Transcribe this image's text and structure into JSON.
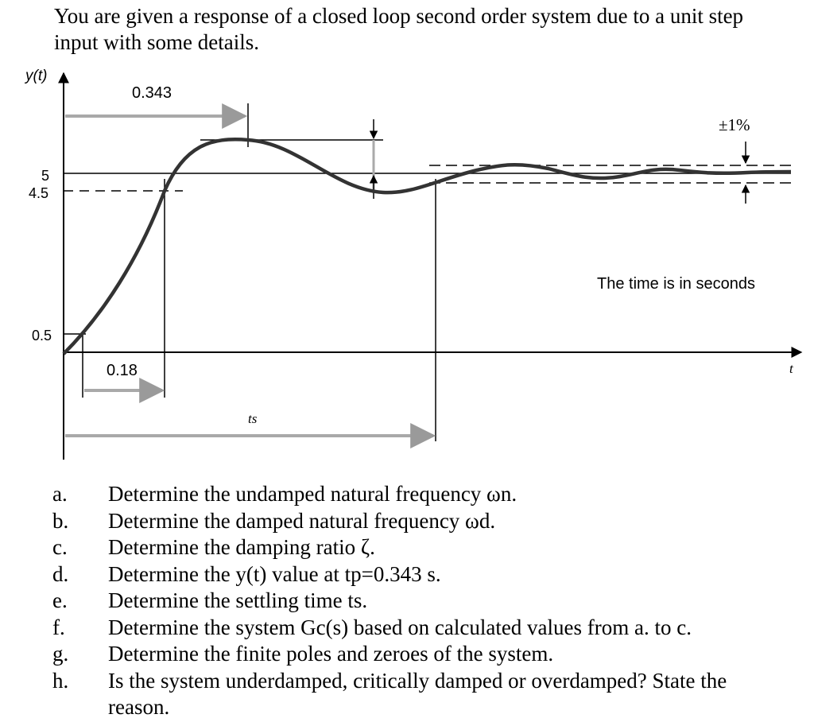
{
  "intro": {
    "line1": "You are given a response of a closed loop second order system due to a unit step",
    "line2": "input with some details."
  },
  "figure": {
    "y_axis_label": "y(t)",
    "x_axis_label": "t",
    "y_ticks": {
      "upper": "5",
      "mid": "4.5",
      "lower": "0.5"
    },
    "peak_time_label": "0.343",
    "rise_time_label": "0.18",
    "settling_time_label": "ts",
    "tolerance_label": "±1%",
    "note": "The time is in seconds"
  },
  "questions": [
    {
      "letter": "a.",
      "text": "Determine the undamped natural frequency ωn."
    },
    {
      "letter": "b.",
      "text": "Determine the damped natural frequency ωd."
    },
    {
      "letter": "c.",
      "text": "Determine the damping ratio ζ."
    },
    {
      "letter": "d.",
      "text": "Determine the y(t) value at tp=0.343 s."
    },
    {
      "letter": "e.",
      "text": "Determine the settling time ts."
    },
    {
      "letter": "f.",
      "text": "Determine the system Gc(s) based on calculated values from a. to c."
    },
    {
      "letter": "g.",
      "text": "Determine the finite poles and zeroes of the system."
    },
    {
      "letter": "h.",
      "text": "Is the system underdamped, critically damped or overdamped? State the"
    },
    {
      "letter": "",
      "text": "reason."
    }
  ]
}
